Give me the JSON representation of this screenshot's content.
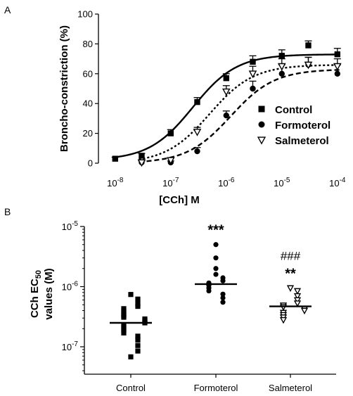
{
  "chart_data": [
    {
      "panel": "A",
      "type": "scatter",
      "xlabel": "[CCh] M",
      "ylabel": "Broncho-constriction (%)",
      "xscale": "log",
      "xlim": [
        5e-09,
        0.00017
      ],
      "ylim": [
        0,
        100
      ],
      "xticks": [
        1e-08,
        1e-07,
        1e-06,
        1e-05,
        0.0001
      ],
      "xtick_labels": [
        {
          "base": "10",
          "exp": "-8"
        },
        {
          "base": "10",
          "exp": "-7"
        },
        {
          "base": "10",
          "exp": "-6"
        },
        {
          "base": "10",
          "exp": "-5"
        },
        {
          "base": "10",
          "exp": "-4"
        }
      ],
      "yticks": [
        0,
        20,
        40,
        60,
        80,
        100
      ],
      "ytick_labels": [
        "0",
        "20",
        "40",
        "60",
        "80",
        "100"
      ],
      "legend_position": "right",
      "series": [
        {
          "name": "Control",
          "marker": "square",
          "line": "solid",
          "x": [
            1e-08,
            3e-08,
            1e-07,
            3e-07,
            1e-06,
            3e-06,
            1e-05,
            3e-05,
            0.0001
          ],
          "y": [
            3,
            5,
            20,
            41,
            57,
            68,
            72,
            79,
            73
          ],
          "err": [
            1,
            1.5,
            2.5,
            3,
            3,
            4,
            4,
            3,
            4
          ],
          "fit": {
            "bottom": 2,
            "top": 73,
            "ec50": 2.5e-07,
            "hill": 1.1
          }
        },
        {
          "name": "Formoterol",
          "marker": "circle",
          "line": "dashed",
          "x": [
            3e-08,
            1e-07,
            3e-07,
            1e-06,
            3e-06,
            1e-05,
            3e-05,
            0.0001
          ],
          "y": [
            0.5,
            0.5,
            8,
            32,
            50,
            60,
            66,
            60
          ],
          "err": [
            1,
            1,
            2.5,
            3,
            5,
            6,
            5,
            6
          ],
          "fit": {
            "bottom": 0,
            "top": 63,
            "ec50": 1.2e-06,
            "hill": 1.1
          }
        },
        {
          "name": "Salmeterol",
          "marker": "triangle-down",
          "line": "dotted",
          "x": [
            3e-08,
            1e-07,
            3e-07,
            1e-06,
            3e-06,
            1e-05,
            3e-05,
            0.0001
          ],
          "y": [
            0.5,
            2,
            21,
            48,
            60,
            65,
            66,
            65
          ],
          "err": [
            1,
            1.5,
            3,
            4,
            5,
            5,
            5,
            5
          ],
          "fit": {
            "bottom": 0,
            "top": 66,
            "ec50": 5e-07,
            "hill": 1.1
          }
        }
      ]
    },
    {
      "panel": "B",
      "type": "scatter",
      "subtype": "dot-plot",
      "ylabel_line1_base": "CCh EC",
      "ylabel_line1_sub": "50",
      "ylabel_line2": "values (M)",
      "yscale": "log",
      "ylim": [
        3.5e-08,
        1e-05
      ],
      "yticks": [
        1e-07,
        1e-06,
        1e-05
      ],
      "ytick_labels": [
        {
          "base": "10",
          "exp": "-7"
        },
        {
          "base": "10",
          "exp": "-6"
        },
        {
          "base": "10",
          "exp": "-5"
        }
      ],
      "categories": [
        "Control",
        "Formoterol",
        "Salmeterol"
      ],
      "groups": [
        {
          "name": "Control",
          "marker": "square",
          "median": 2.5e-07,
          "values": [
            7.4e-07,
            6.2e-07,
            5.2e-07,
            4.7e-07,
            4.3e-07,
            3.9e-07,
            3.5e-07,
            3.3e-07,
            3.1e-07,
            2.9e-07,
            2.7e-07,
            2.5e-07,
            2.3e-07,
            2.1e-07,
            1.9e-07,
            1.7e-07,
            1.5e-07,
            1.3e-07,
            1.05e-07,
            8.5e-08,
            6.8e-08
          ],
          "annotation": ""
        },
        {
          "name": "Formoterol",
          "marker": "circle",
          "median": 1.1e-06,
          "values": [
            5e-06,
            3e-06,
            2e-06,
            1.6e-06,
            1.4e-06,
            1.25e-06,
            1.15e-06,
            1.05e-06,
            9.5e-07,
            8.5e-07,
            7.5e-07,
            6.5e-07,
            5.5e-07
          ],
          "annotation": "***"
        },
        {
          "name": "Salmeterol",
          "marker": "triangle-down",
          "median": 4.7e-07,
          "values": [
            9.5e-07,
            8.5e-07,
            7e-07,
            6e-07,
            5.3e-07,
            4.9e-07,
            4.6e-07,
            4.3e-07,
            4e-07,
            3.7e-07,
            3.4e-07,
            3.1e-07,
            2.8e-07
          ],
          "annotation": "**",
          "annotation2": "###"
        }
      ]
    }
  ]
}
